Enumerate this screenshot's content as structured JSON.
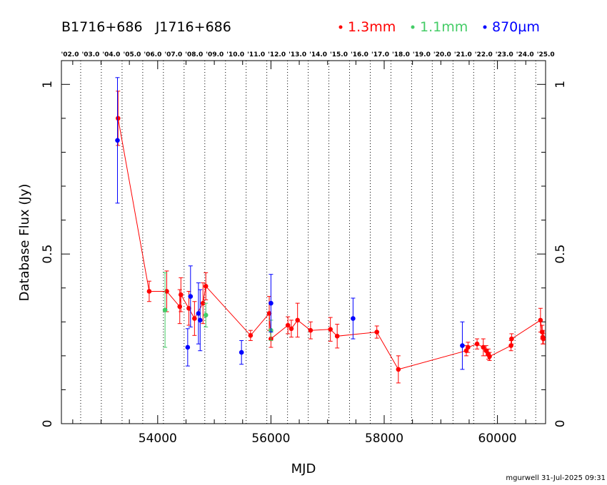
{
  "header": {
    "source_names": "B1716+686   J1716+686",
    "footer": "mgurwell 31-Jul-2025 09:31"
  },
  "chart_data": {
    "type": "scatter",
    "xlabel": "MJD",
    "ylabel": "Database Flux (Jy)",
    "xlim": [
      52300,
      60850
    ],
    "ylim": [
      0,
      1.07
    ],
    "x_ticks": [
      54000,
      56000,
      58000,
      60000
    ],
    "y_ticks": [
      0,
      0.5,
      1
    ],
    "y_tick_labels": [
      "0",
      "0.5",
      "1"
    ],
    "grid": false,
    "legend": "top-right",
    "year_markers": [
      {
        "label": "'02.0",
        "mjd": 52275
      },
      {
        "label": "'03.0",
        "mjd": 52640
      },
      {
        "label": "'04.0",
        "mjd": 53005
      },
      {
        "label": "'05.0",
        "mjd": 53371
      },
      {
        "label": "'06.0",
        "mjd": 53736
      },
      {
        "label": "'07.0",
        "mjd": 54101
      },
      {
        "label": "'08.0",
        "mjd": 54466
      },
      {
        "label": "'09.0",
        "mjd": 54832
      },
      {
        "label": "'10.0",
        "mjd": 55197
      },
      {
        "label": "'11.0",
        "mjd": 55562
      },
      {
        "label": "'12.0",
        "mjd": 55927
      },
      {
        "label": "'13.0",
        "mjd": 56293
      },
      {
        "label": "'14.0",
        "mjd": 56658
      },
      {
        "label": "'15.0",
        "mjd": 57023
      },
      {
        "label": "'16.0",
        "mjd": 57388
      },
      {
        "label": "'17.0",
        "mjd": 57754
      },
      {
        "label": "'18.0",
        "mjd": 58119
      },
      {
        "label": "'19.0",
        "mjd": 58484
      },
      {
        "label": "'20.0",
        "mjd": 58849
      },
      {
        "label": "'21.0",
        "mjd": 59215
      },
      {
        "label": "'22.0",
        "mjd": 59580
      },
      {
        "label": "'23.0",
        "mjd": 59945
      },
      {
        "label": "'24.0",
        "mjd": 60310
      },
      {
        "label": "'25.0",
        "mjd": 60676
      }
    ],
    "series": [
      {
        "name": "1.3mm",
        "color": "#ff0000",
        "connected": true,
        "points": [
          {
            "x": 53300,
            "y": 0.9,
            "err": 0.08
          },
          {
            "x": 53850,
            "y": 0.39,
            "err": 0.03
          },
          {
            "x": 54160,
            "y": 0.39,
            "err": 0.06
          },
          {
            "x": 54390,
            "y": 0.345,
            "err": 0.05
          },
          {
            "x": 54410,
            "y": 0.38,
            "err": 0.05
          },
          {
            "x": 54550,
            "y": 0.34,
            "err": 0.05
          },
          {
            "x": 54650,
            "y": 0.31,
            "err": 0.05
          },
          {
            "x": 54800,
            "y": 0.355,
            "err": 0.06
          },
          {
            "x": 54850,
            "y": 0.405,
            "err": 0.04
          },
          {
            "x": 55640,
            "y": 0.26,
            "err": 0.015
          },
          {
            "x": 55970,
            "y": 0.325,
            "err": 0.05
          },
          {
            "x": 56000,
            "y": 0.25,
            "err": 0.025
          },
          {
            "x": 56300,
            "y": 0.29,
            "err": 0.025
          },
          {
            "x": 56360,
            "y": 0.28,
            "err": 0.025
          },
          {
            "x": 56470,
            "y": 0.305,
            "err": 0.05
          },
          {
            "x": 56700,
            "y": 0.275,
            "err": 0.025
          },
          {
            "x": 57050,
            "y": 0.278,
            "err": 0.035
          },
          {
            "x": 57170,
            "y": 0.258,
            "err": 0.035
          },
          {
            "x": 57870,
            "y": 0.27,
            "err": 0.018
          },
          {
            "x": 58250,
            "y": 0.16,
            "err": 0.04
          },
          {
            "x": 59450,
            "y": 0.215,
            "err": 0.015
          },
          {
            "x": 59480,
            "y": 0.225,
            "err": 0.015
          },
          {
            "x": 59640,
            "y": 0.235,
            "err": 0.015
          },
          {
            "x": 59750,
            "y": 0.225,
            "err": 0.025
          },
          {
            "x": 59800,
            "y": 0.215,
            "err": 0.015
          },
          {
            "x": 59840,
            "y": 0.205,
            "err": 0.015
          },
          {
            "x": 59860,
            "y": 0.198,
            "err": 0.012
          },
          {
            "x": 60240,
            "y": 0.23,
            "err": 0.015
          },
          {
            "x": 60250,
            "y": 0.25,
            "err": 0.015
          },
          {
            "x": 60760,
            "y": 0.305,
            "err": 0.035
          },
          {
            "x": 60790,
            "y": 0.27,
            "err": 0.02
          },
          {
            "x": 60800,
            "y": 0.255,
            "err": 0.02
          },
          {
            "x": 60810,
            "y": 0.25,
            "err": 0.015
          }
        ]
      },
      {
        "name": "1.1mm",
        "color": "#44cc66",
        "connected": false,
        "points": [
          {
            "x": 54130,
            "y": 0.335,
            "err": 0.11
          },
          {
            "x": 54850,
            "y": 0.32,
            "err": 0.035
          },
          {
            "x": 56000,
            "y": 0.275,
            "err": 0.03
          }
        ]
      },
      {
        "name": "870µm",
        "color": "#0000ff",
        "connected": false,
        "points": [
          {
            "x": 53290,
            "y": 0.835,
            "err": 0.185
          },
          {
            "x": 54530,
            "y": 0.225,
            "err": 0.055
          },
          {
            "x": 54580,
            "y": 0.375,
            "err": 0.09
          },
          {
            "x": 54720,
            "y": 0.325,
            "err": 0.09
          },
          {
            "x": 54750,
            "y": 0.305,
            "err": 0.09
          },
          {
            "x": 55480,
            "y": 0.21,
            "err": 0.035
          },
          {
            "x": 56000,
            "y": 0.355,
            "err": 0.085
          },
          {
            "x": 57450,
            "y": 0.31,
            "err": 0.06
          },
          {
            "x": 59380,
            "y": 0.23,
            "err": 0.07
          }
        ]
      }
    ]
  }
}
